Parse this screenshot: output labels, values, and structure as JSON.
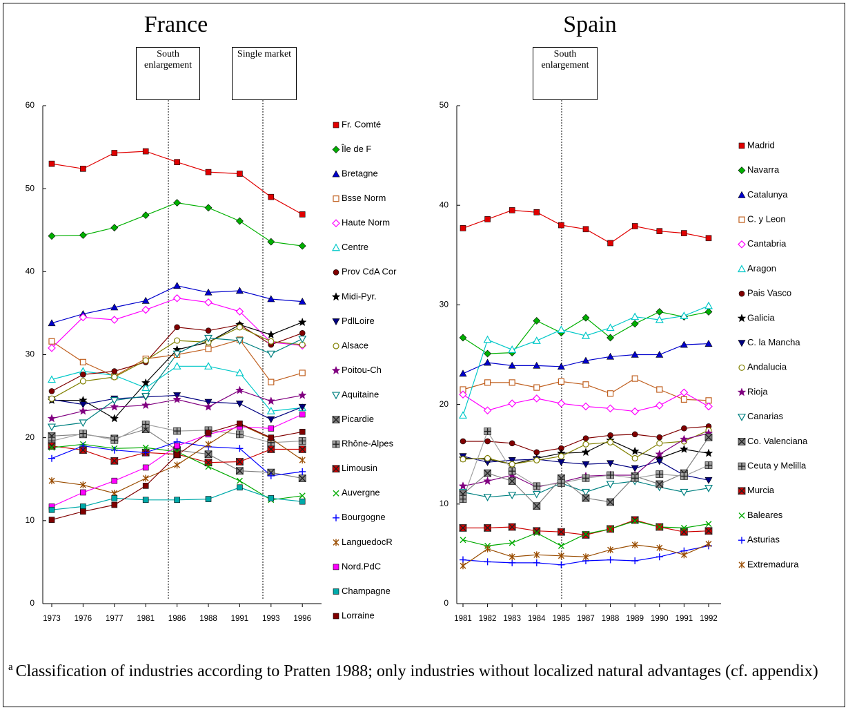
{
  "chart_data": [
    {
      "type": "line",
      "title": "France",
      "categories": [
        "1973",
        "1976",
        "1977",
        "1981",
        "1986",
        "1988",
        "1991",
        "1993",
        "1996"
      ],
      "ylim": [
        0,
        60
      ],
      "yticks": [
        0,
        10,
        20,
        30,
        40,
        50,
        60
      ],
      "annotations": [
        "South enlargement",
        "Single market"
      ],
      "series": [
        {
          "name": "Fr. Comté",
          "color": "#e00000",
          "marker": "square",
          "values": [
            53.0,
            52.4,
            54.3,
            54.5,
            53.2,
            52.0,
            51.8,
            49.0,
            46.9
          ]
        },
        {
          "name": "Île de F",
          "color": "#00b000",
          "marker": "diamond",
          "values": [
            44.3,
            44.4,
            45.3,
            46.8,
            48.3,
            47.7,
            46.1,
            43.6,
            43.1
          ]
        },
        {
          "name": "Bretagne",
          "color": "#0000cc",
          "marker": "triangle",
          "values": [
            33.8,
            34.9,
            35.7,
            36.5,
            38.3,
            37.5,
            37.7,
            36.7,
            36.4
          ]
        },
        {
          "name": "Bsse Norm",
          "color": "#c06020",
          "marker": "square-open",
          "values": [
            31.6,
            29.1,
            27.4,
            29.5,
            30.0,
            30.7,
            31.8,
            26.7,
            27.8
          ]
        },
        {
          "name": "Haute Norm",
          "color": "#ff00ff",
          "marker": "diamond-open",
          "values": [
            30.8,
            34.5,
            34.2,
            35.4,
            36.8,
            36.3,
            35.2,
            31.5,
            31.1
          ]
        },
        {
          "name": "Centre",
          "color": "#00c8c8",
          "marker": "triangle-open",
          "values": [
            27.0,
            28.0,
            27.5,
            26.0,
            28.6,
            28.6,
            27.8,
            23.2,
            23.6
          ]
        },
        {
          "name": "Prov CdA Cor",
          "color": "#800000",
          "marker": "circle",
          "values": [
            25.6,
            27.6,
            28.0,
            29.1,
            33.3,
            32.9,
            33.6,
            31.2,
            32.6
          ]
        },
        {
          "name": "Midi-Pyr.",
          "color": "#000000",
          "marker": "star",
          "values": [
            24.5,
            24.5,
            22.3,
            26.6,
            30.6,
            31.5,
            33.6,
            32.4,
            33.9
          ]
        },
        {
          "name": "PdlLoire",
          "color": "#000080",
          "marker": "triangle-down",
          "values": [
            24.6,
            24.0,
            24.7,
            24.9,
            25.1,
            24.3,
            24.1,
            22.2,
            23.7
          ]
        },
        {
          "name": "Alsace",
          "color": "#808000",
          "marker": "circle-open",
          "values": [
            24.7,
            26.8,
            27.3,
            29.3,
            31.7,
            31.5,
            33.3,
            31.6,
            31.2
          ]
        },
        {
          "name": "Poitou-Ch",
          "color": "#800080",
          "marker": "star",
          "values": [
            22.3,
            23.2,
            23.7,
            23.9,
            24.6,
            23.7,
            25.7,
            24.4,
            25.1
          ]
        },
        {
          "name": "Aquitaine",
          "color": "#008080",
          "marker": "triangle-down-open",
          "values": [
            21.3,
            21.8,
            24.5,
            25.0,
            30.1,
            32.0,
            31.7,
            30.1,
            31.9
          ]
        },
        {
          "name": "Picardie",
          "color": "#808080",
          "marker": "box-x",
          "values": [
            20.2,
            20.4,
            19.9,
            21.0,
            18.5,
            18.0,
            16.0,
            15.8,
            15.1
          ]
        },
        {
          "name": "Rhône-Alpes",
          "color": "#a0a0a0",
          "marker": "box-plus",
          "values": [
            19.6,
            20.5,
            19.7,
            21.6,
            20.8,
            20.9,
            20.4,
            19.4,
            19.6
          ]
        },
        {
          "name": "Limousin",
          "color": "#cc0000",
          "marker": "box-x",
          "values": [
            19.0,
            18.5,
            17.2,
            18.2,
            18.0,
            17.0,
            17.1,
            18.6,
            18.6
          ]
        },
        {
          "name": "Auvergne",
          "color": "#00aa00",
          "marker": "x",
          "values": [
            18.8,
            19.2,
            18.7,
            18.8,
            18.3,
            16.5,
            14.8,
            12.5,
            13.0
          ]
        },
        {
          "name": "Bourgogne",
          "color": "#0000ff",
          "marker": "plus",
          "values": [
            17.5,
            19.0,
            18.5,
            18.2,
            19.5,
            18.9,
            18.7,
            15.4,
            15.9
          ]
        },
        {
          "name": "LanguedocR",
          "color": "#994c00",
          "marker": "asterisk",
          "values": [
            14.8,
            14.3,
            13.3,
            15.1,
            16.7,
            19.2,
            21.6,
            19.9,
            17.3
          ]
        },
        {
          "name": "Nord.PdC",
          "color": "#ff00ff",
          "marker": "square",
          "values": [
            11.7,
            13.4,
            14.8,
            16.4,
            19.0,
            20.4,
            21.3,
            21.1,
            22.8
          ]
        },
        {
          "name": "Champagne",
          "color": "#00aaaa",
          "marker": "square",
          "values": [
            11.3,
            11.7,
            12.7,
            12.5,
            12.5,
            12.6,
            14.0,
            12.7,
            12.3
          ]
        },
        {
          "name": "Lorraine",
          "color": "#800000",
          "marker": "square",
          "values": [
            10.1,
            11.1,
            11.9,
            14.2,
            17.9,
            20.6,
            21.7,
            20.0,
            20.7
          ]
        }
      ]
    },
    {
      "type": "line",
      "title": "Spain",
      "categories": [
        "1981",
        "1982",
        "1983",
        "1984",
        "1985",
        "1987",
        "1988",
        "1989",
        "1990",
        "1991",
        "1992"
      ],
      "ylim": [
        0,
        50
      ],
      "yticks": [
        0,
        10,
        20,
        30,
        40,
        50
      ],
      "annotations": [
        "South enlargement"
      ],
      "series": [
        {
          "name": "Madrid",
          "color": "#e00000",
          "marker": "square",
          "values": [
            37.7,
            38.6,
            39.5,
            39.3,
            38.0,
            37.6,
            36.2,
            37.9,
            37.4,
            37.2,
            36.7
          ]
        },
        {
          "name": "Navarra",
          "color": "#00b000",
          "marker": "diamond",
          "values": [
            26.7,
            25.1,
            25.2,
            28.4,
            27.2,
            28.7,
            26.7,
            28.1,
            29.3,
            28.8,
            29.3
          ]
        },
        {
          "name": "Catalunya",
          "color": "#0000cc",
          "marker": "triangle",
          "values": [
            23.1,
            24.2,
            23.9,
            23.9,
            23.8,
            24.4,
            24.8,
            25.0,
            25.0,
            26.0,
            26.1
          ]
        },
        {
          "name": "C. y Leon",
          "color": "#c06020",
          "marker": "square-open",
          "values": [
            21.5,
            22.2,
            22.2,
            21.7,
            22.3,
            22.0,
            21.1,
            22.6,
            21.5,
            20.5,
            20.4
          ]
        },
        {
          "name": "Cantabria",
          "color": "#ff00ff",
          "marker": "diamond-open",
          "values": [
            21.0,
            19.4,
            20.1,
            20.6,
            20.1,
            19.8,
            19.6,
            19.3,
            19.9,
            21.2,
            19.8
          ]
        },
        {
          "name": "Aragon",
          "color": "#00c8c8",
          "marker": "triangle-open",
          "values": [
            18.9,
            26.5,
            25.5,
            26.4,
            27.5,
            26.9,
            27.7,
            28.8,
            28.5,
            28.9,
            29.9
          ]
        },
        {
          "name": "Pais Vasco",
          "color": "#800000",
          "marker": "circle",
          "values": [
            16.3,
            16.3,
            16.1,
            15.2,
            15.6,
            16.6,
            16.9,
            17.0,
            16.7,
            17.6,
            17.8
          ]
        },
        {
          "name": "Galicia",
          "color": "#000000",
          "marker": "star",
          "values": [
            14.6,
            14.5,
            14.0,
            14.6,
            15.1,
            15.2,
            16.4,
            15.3,
            14.6,
            15.5,
            15.1
          ]
        },
        {
          "name": "C. la Mancha",
          "color": "#000080",
          "marker": "triangle-down",
          "values": [
            14.8,
            14.2,
            14.4,
            14.5,
            14.2,
            14.0,
            14.1,
            13.6,
            14.3,
            12.9,
            12.4
          ]
        },
        {
          "name": "Andalucia",
          "color": "#808000",
          "marker": "circle-open",
          "values": [
            14.5,
            14.6,
            14.0,
            14.4,
            14.8,
            16.0,
            16.2,
            14.6,
            16.1,
            16.3,
            17.4
          ]
        },
        {
          "name": "Rioja",
          "color": "#800080",
          "marker": "star",
          "values": [
            11.8,
            12.3,
            12.9,
            11.7,
            12.2,
            12.8,
            12.9,
            12.9,
            15.0,
            16.5,
            17.1
          ]
        },
        {
          "name": "Canarias",
          "color": "#008080",
          "marker": "triangle-down-open",
          "values": [
            11.2,
            10.7,
            10.9,
            11.0,
            12.1,
            11.2,
            12.0,
            12.3,
            11.7,
            11.2,
            11.6
          ]
        },
        {
          "name": "Co. Valenciana",
          "color": "#808080",
          "marker": "box-x",
          "values": [
            11.0,
            13.1,
            12.3,
            9.8,
            12.6,
            10.6,
            10.2,
            12.8,
            12.0,
            13.1,
            16.7
          ]
        },
        {
          "name": "Ceuta y Melilla",
          "color": "#a0a0a0",
          "marker": "box-plus",
          "values": [
            10.5,
            17.3,
            13.3,
            11.8,
            12.1,
            12.6,
            12.9,
            12.6,
            13.0,
            12.8,
            13.9
          ]
        },
        {
          "name": "Murcia",
          "color": "#cc0000",
          "marker": "box-x",
          "values": [
            7.6,
            7.6,
            7.7,
            7.3,
            7.2,
            6.9,
            7.5,
            8.4,
            7.7,
            7.2,
            7.3
          ]
        },
        {
          "name": "Baleares",
          "color": "#00aa00",
          "marker": "x",
          "values": [
            6.4,
            5.8,
            6.1,
            7.1,
            5.8,
            7.0,
            7.5,
            8.3,
            7.7,
            7.6,
            8.0
          ]
        },
        {
          "name": "Asturias",
          "color": "#0000ff",
          "marker": "plus",
          "values": [
            4.4,
            4.2,
            4.1,
            4.1,
            3.9,
            4.3,
            4.4,
            4.3,
            4.7,
            5.3,
            5.8
          ]
        },
        {
          "name": "Extremadura",
          "color": "#994c00",
          "marker": "asterisk",
          "values": [
            3.8,
            5.5,
            4.7,
            4.9,
            4.8,
            4.7,
            5.4,
            5.9,
            5.6,
            4.9,
            6.0
          ]
        }
      ]
    }
  ],
  "footnote": {
    "marker": "a",
    "text": "Classification of industries according to Pratten 1988; only industries without localized natural advantages (cf. appendix)"
  }
}
